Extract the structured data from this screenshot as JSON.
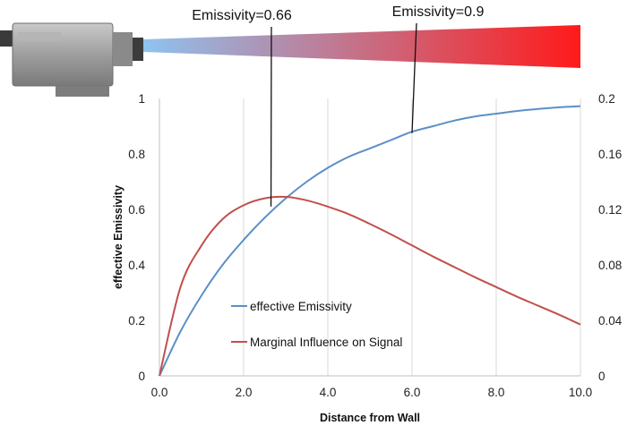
{
  "colors": {
    "emissivity_line": "#5b8fc7",
    "influence_line": "#c0504d",
    "grid": "#d9d9d9",
    "gradient_start": "#8ec3f0",
    "gradient_end": "#ff1a1a"
  },
  "illustration": {
    "camera_icon": "thermal-camera-icon",
    "beam": "gradient-beam"
  },
  "chart_data": {
    "type": "line",
    "title": "",
    "xlabel": "Distance from Wall",
    "ylabel": "effective Emissivity",
    "y2label": "",
    "xlim": [
      0,
      10
    ],
    "ylim": [
      0,
      1
    ],
    "y2lim": [
      0,
      0.2
    ],
    "grid": "vertical",
    "x_ticks": [
      "0.0",
      "2.0",
      "4.0",
      "6.0",
      "8.0",
      "10.0"
    ],
    "x_tick_values": [
      0,
      2,
      4,
      6,
      8,
      10
    ],
    "y_ticks": [
      "0",
      "0.2",
      "0.4",
      "0.6",
      "0.8",
      "1"
    ],
    "y_tick_values": [
      0,
      0.2,
      0.4,
      0.6,
      0.8,
      1
    ],
    "y2_ticks": [
      "0",
      "0.04",
      "0.08",
      "0.12",
      "0.16",
      "0.2"
    ],
    "y2_tick_values": [
      0,
      0.04,
      0.08,
      0.12,
      0.16,
      0.2
    ],
    "legend": {
      "location": "center",
      "entries": [
        "effective Emissivity",
        "Marginal Influence on Signal"
      ]
    },
    "series": [
      {
        "name": "effective Emissivity",
        "axis": "left",
        "x": [
          0,
          0.5,
          1,
          1.5,
          2,
          2.5,
          3,
          3.5,
          4,
          4.5,
          5,
          5.5,
          6,
          6.5,
          7,
          7.5,
          8,
          8.5,
          9,
          9.5,
          10
        ],
        "values": [
          0,
          0.16,
          0.29,
          0.4,
          0.49,
          0.57,
          0.64,
          0.7,
          0.75,
          0.79,
          0.82,
          0.85,
          0.88,
          0.9,
          0.92,
          0.935,
          0.945,
          0.955,
          0.962,
          0.968,
          0.972
        ]
      },
      {
        "name": "Marginal Influence on Signal",
        "axis": "right",
        "x": [
          0,
          0.5,
          1,
          1.5,
          2,
          2.5,
          3,
          3.5,
          4,
          4.5,
          5,
          5.5,
          6,
          6.5,
          7,
          7.5,
          8,
          8.5,
          9,
          9.5,
          10
        ],
        "values": [
          0,
          0.064,
          0.094,
          0.113,
          0.123,
          0.128,
          0.129,
          0.1265,
          0.122,
          0.1165,
          0.1095,
          0.102,
          0.094,
          0.086,
          0.0785,
          0.071,
          0.064,
          0.057,
          0.0505,
          0.044,
          0.037
        ]
      }
    ],
    "annotations": [
      {
        "text": "Emissivity=0.66",
        "x": 2.65,
        "y": 0.61
      },
      {
        "text": "Emissivity=0.9",
        "x": 6.0,
        "y": 0.875
      }
    ]
  }
}
